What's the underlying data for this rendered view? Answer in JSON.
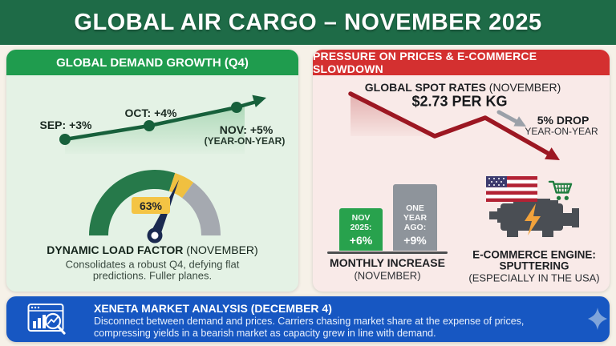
{
  "header": {
    "title": "GLOBAL AIR CARGO – NOVEMBER 2025"
  },
  "left_panel": {
    "title": "GLOBAL DEMAND GROWTH (Q4)",
    "line_labels": {
      "sep": "SEP: +3%",
      "oct": "OCT: +4%",
      "nov": "NOV: +5%",
      "nov_sub": "(YEAR-ON-YEAR)"
    },
    "gauge": {
      "value_label": "63%",
      "caption_bold": "DYNAMIC LOAD FACTOR",
      "caption_light": " (NOVEMBER)",
      "desc_line1": "Consolidates a robust Q4, defying flat",
      "desc_line2": "predictions. Fuller planes."
    }
  },
  "right_panel": {
    "title": "PRESSURE ON PRICES & E-COMMERCE SLOWDOWN",
    "spot_rates": {
      "label_bold": "GLOBAL SPOT RATES",
      "label_light": " (NOVEMBER)",
      "value": "$2.73 PER KG",
      "drop_bold": "5% DROP",
      "drop_light": "YEAR-ON-YEAR"
    },
    "bar_chart": {
      "nov": {
        "line1": "NOV",
        "line2": "2025:",
        "line3": "+6%"
      },
      "year_ago": {
        "line1": "ONE",
        "line2": "YEAR AGO:",
        "line3": "+9%"
      },
      "caption_bold": "MONTHLY INCREASE",
      "caption_light": "(NOVEMBER)"
    },
    "ecommerce": {
      "line1": "E-COMMERCE ENGINE:",
      "line2": "SPUTTERING",
      "line3": "(ESPECIALLY IN THE USA)"
    }
  },
  "footer": {
    "title": "XENETA MARKET ANALYSIS (DECEMBER 4)",
    "line1": "Disconnect between demand and prices. Carriers chasing market share at the expense of prices,",
    "line2": "compressing yields in a bearish market as capacity grew in line with demand."
  },
  "icons": {
    "us-flag-icon": "flag of the USA",
    "shopping-cart-icon": "green shopping cart",
    "engine-icon": "engine block with lightning bolt",
    "market-analysis-icon": "browser window with bar chart and magnifier",
    "sparkle-icon": "four-point diamond sparkle",
    "trend-up-arrow-icon": "rising arrow",
    "trend-down-arrow-icon": "falling arrow",
    "gray-pointer-arrow-icon": "gray annotation arrow"
  },
  "colors": {
    "header_green": "#1e6b47",
    "panel_green": "#1f9c4e",
    "mint_bg": "#e4f2e5",
    "line_green": "#17603b",
    "header_red": "#d43030",
    "pink_bg": "#f9eae8",
    "dark_red": "#9c1722",
    "bar_green": "#28a24d",
    "bar_gray": "#8e949b",
    "needle_navy": "#1b2a50",
    "badge_yellow": "#f4c444",
    "footer_blue": "#1757c2",
    "page_cream": "#f6f1e8"
  },
  "chart_data": [
    {
      "type": "line",
      "title": "GLOBAL DEMAND GROWTH (Q4)",
      "x": [
        "SEP",
        "OCT",
        "NOV"
      ],
      "values": [
        3,
        4,
        5
      ],
      "ylabel": "% growth year-on-year",
      "annotations": [
        "SEP: +3%",
        "OCT: +4%",
        "NOV: +5% (YEAR-ON-YEAR)"
      ],
      "trend": "up"
    },
    {
      "type": "gauge",
      "title": "DYNAMIC LOAD FACTOR (NOVEMBER)",
      "value": 63,
      "min": 0,
      "max": 100,
      "unit": "%",
      "note": "Consolidates a robust Q4, defying flat predictions. Fuller planes."
    },
    {
      "type": "line",
      "title": "GLOBAL SPOT RATES (NOVEMBER)",
      "value_label": "$2.73 PER KG",
      "change_label": "5% DROP YEAR-ON-YEAR",
      "trend": "down"
    },
    {
      "type": "bar",
      "title": "MONTHLY INCREASE (NOVEMBER)",
      "categories": [
        "NOV 2025",
        "ONE YEAR AGO"
      ],
      "values": [
        6,
        9
      ],
      "unit": "%"
    }
  ]
}
